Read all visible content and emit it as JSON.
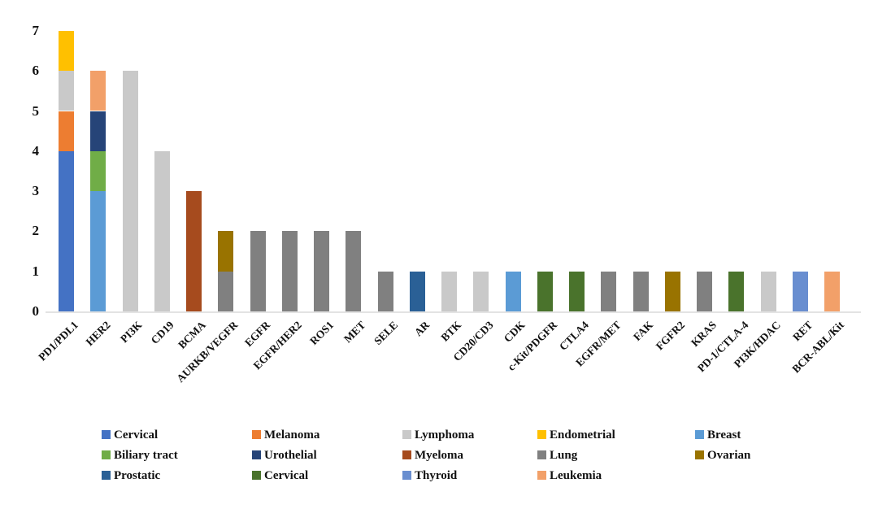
{
  "chart_data": {
    "type": "bar",
    "stacked": true,
    "title": "",
    "xlabel": "",
    "ylabel": "",
    "ylim": [
      0,
      7
    ],
    "yticks": [
      0,
      1,
      2,
      3,
      4,
      5,
      6,
      7
    ],
    "grid": false,
    "legend_position": "bottom",
    "axis_line_color": "#E3E3E3",
    "legend": [
      {
        "id": "cervical",
        "label": "Cervical",
        "color": "#4472C4"
      },
      {
        "id": "melanoma",
        "label": "Melanoma",
        "color": "#ED7D31"
      },
      {
        "id": "lymphoma",
        "label": "Lymphoma",
        "color": "#C9C9C9"
      },
      {
        "id": "endometrial",
        "label": "Endometrial",
        "color": "#FFC000"
      },
      {
        "id": "breast",
        "label": "Breast",
        "color": "#5B9BD5"
      },
      {
        "id": "biliary_tract",
        "label": "Biliary tract",
        "color": "#70AD47"
      },
      {
        "id": "urothelial",
        "label": "Urothelial",
        "color": "#264478"
      },
      {
        "id": "myeloma",
        "label": "Myeloma",
        "color": "#A64B1E"
      },
      {
        "id": "lung",
        "label": "Lung",
        "color": "#808080"
      },
      {
        "id": "ovarian",
        "label": "Ovarian",
        "color": "#997300"
      },
      {
        "id": "prostatic",
        "label": "Prostatic",
        "color": "#2A6096"
      },
      {
        "id": "cervical_dark",
        "label": "Cervical",
        "color": "#4A732C"
      },
      {
        "id": "thyroid",
        "label": "Thyroid",
        "color": "#698ED0"
      },
      {
        "id": "leukemia",
        "label": "Leukemia",
        "color": "#F2A069"
      }
    ],
    "legend_rows": [
      [
        "cervical",
        "melanoma",
        "lymphoma",
        "endometrial",
        "breast"
      ],
      [
        "biliary_tract",
        "urothelial",
        "myeloma",
        "lung",
        "ovarian"
      ],
      [
        "prostatic",
        "cervical_dark",
        "thyroid",
        "leukemia"
      ]
    ],
    "bars": [
      {
        "category": "PD1/PDL1",
        "segments": [
          {
            "series": "cervical",
            "value": 4
          },
          {
            "series": "melanoma",
            "value": 1
          },
          {
            "series": "lymphoma",
            "value": 1
          },
          {
            "series": "endometrial",
            "value": 1
          }
        ]
      },
      {
        "category": "HER2",
        "segments": [
          {
            "series": "breast",
            "value": 3
          },
          {
            "series": "biliary_tract",
            "value": 1
          },
          {
            "series": "urothelial",
            "value": 1
          },
          {
            "series": "leukemia",
            "value": 1
          }
        ]
      },
      {
        "category": "PI3K",
        "segments": [
          {
            "series": "lymphoma",
            "value": 6
          }
        ]
      },
      {
        "category": "CD19",
        "segments": [
          {
            "series": "lymphoma",
            "value": 4
          }
        ]
      },
      {
        "category": "BCMA",
        "segments": [
          {
            "series": "myeloma",
            "value": 3
          }
        ]
      },
      {
        "category": "AURKB/VEGFR",
        "segments": [
          {
            "series": "lung",
            "value": 1
          },
          {
            "series": "ovarian",
            "value": 1
          }
        ]
      },
      {
        "category": "EGFR",
        "segments": [
          {
            "series": "lung",
            "value": 2
          }
        ]
      },
      {
        "category": "EGFR/HER2",
        "segments": [
          {
            "series": "lung",
            "value": 2
          }
        ]
      },
      {
        "category": "ROS1",
        "segments": [
          {
            "series": "lung",
            "value": 2
          }
        ]
      },
      {
        "category": "MET",
        "segments": [
          {
            "series": "lung",
            "value": 2
          }
        ]
      },
      {
        "category": "SELE",
        "segments": [
          {
            "series": "lung",
            "value": 1
          }
        ]
      },
      {
        "category": "AR",
        "segments": [
          {
            "series": "prostatic",
            "value": 1
          }
        ]
      },
      {
        "category": "BTK",
        "segments": [
          {
            "series": "lymphoma",
            "value": 1
          }
        ]
      },
      {
        "category": "CD20/CD3",
        "segments": [
          {
            "series": "lymphoma",
            "value": 1
          }
        ]
      },
      {
        "category": "CDK",
        "segments": [
          {
            "series": "breast",
            "value": 1
          }
        ]
      },
      {
        "category": "c-Kit/PDGFR",
        "segments": [
          {
            "series": "cervical_dark",
            "value": 1
          }
        ]
      },
      {
        "category": "CTLA4",
        "segments": [
          {
            "series": "cervical_dark",
            "value": 1
          }
        ]
      },
      {
        "category": "EGFR/MET",
        "segments": [
          {
            "series": "lung",
            "value": 1
          }
        ]
      },
      {
        "category": "FAK",
        "segments": [
          {
            "series": "lung",
            "value": 1
          }
        ]
      },
      {
        "category": "FGFR2",
        "segments": [
          {
            "series": "ovarian",
            "value": 1
          }
        ]
      },
      {
        "category": "KRAS",
        "segments": [
          {
            "series": "lung",
            "value": 1
          }
        ]
      },
      {
        "category": "PD-1/CTLA-4",
        "segments": [
          {
            "series": "cervical_dark",
            "value": 1
          }
        ]
      },
      {
        "category": "PI3K/HDAC",
        "segments": [
          {
            "series": "lymphoma",
            "value": 1
          }
        ]
      },
      {
        "category": "RET",
        "segments": [
          {
            "series": "thyroid",
            "value": 1
          }
        ]
      },
      {
        "category": "BCR-ABL/Kit",
        "segments": [
          {
            "series": "leukemia",
            "value": 1
          }
        ]
      }
    ]
  }
}
